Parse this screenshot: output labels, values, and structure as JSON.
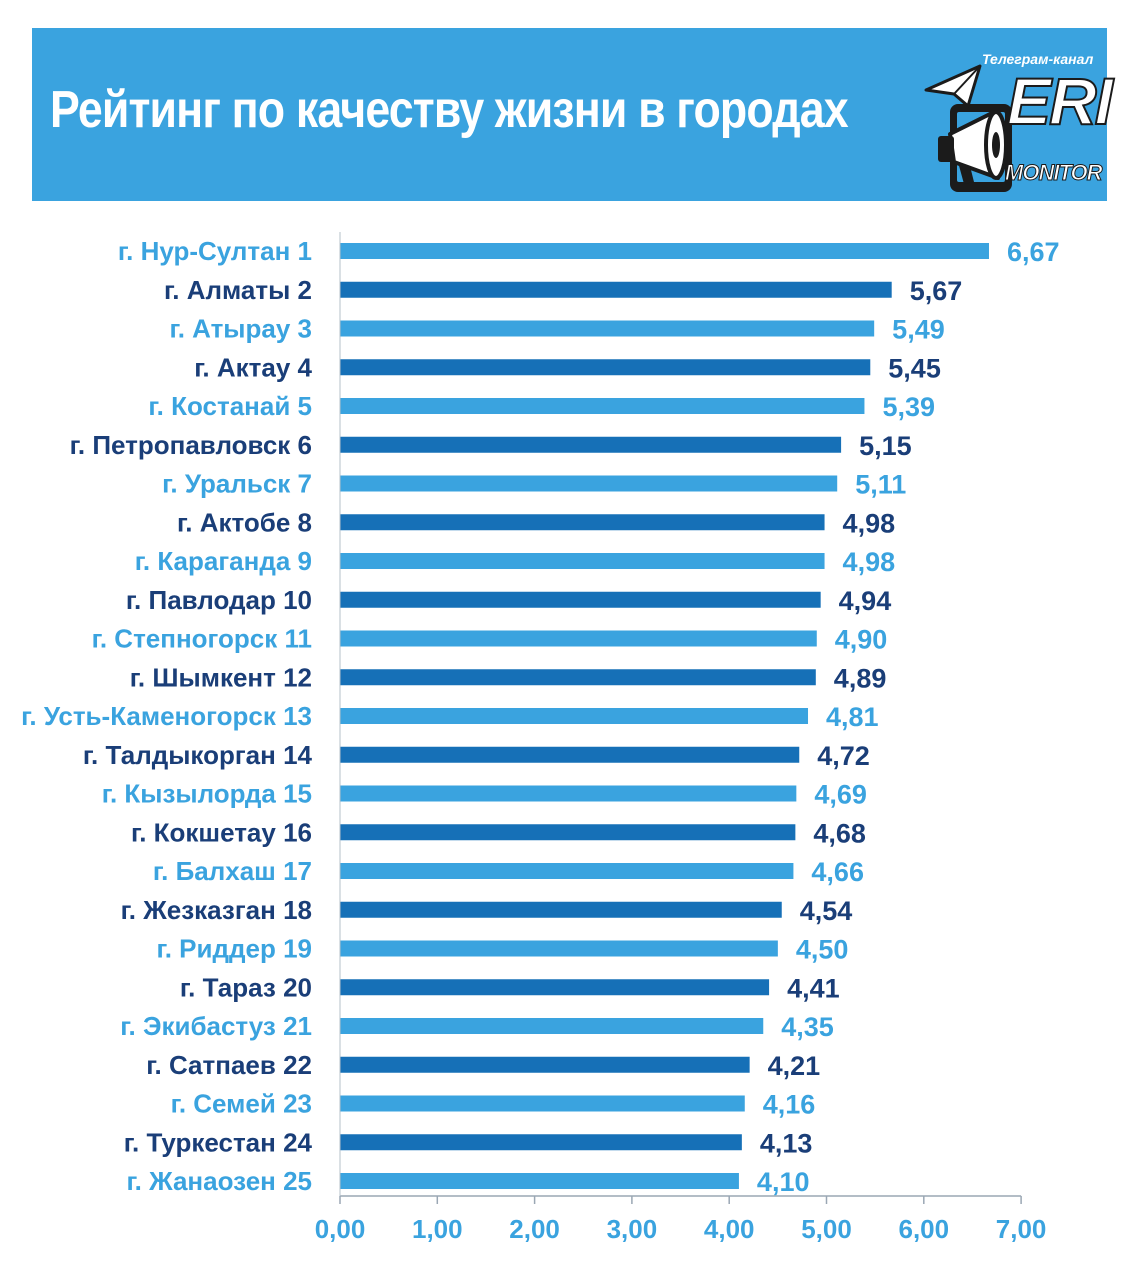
{
  "header": {
    "title": "Рейтинг по качеству жизни в городах",
    "logo_caption": "Телеграм-канал",
    "logo_word": "ERI",
    "logo_sub": "MONITOR"
  },
  "colors": {
    "banner": "#3aa3df",
    "light": "#3aa3df",
    "dark": "#1670b7",
    "label_dark": "#1a3e78"
  },
  "chart_data": {
    "type": "bar",
    "orientation": "horizontal",
    "categories": [
      "г. Нур-Султан 1",
      "г. Алматы 2",
      "г. Атырау 3",
      "г. Актау 4",
      "г. Костанай 5",
      "г. Петропавловск 6",
      "г. Уральск 7",
      "г. Актобе 8",
      "г. Караганда 9",
      "г. Павлодар 10",
      "г. Степногорск 11",
      "г. Шымкент 12",
      "г. Усть-Каменогорск 13",
      "г. Талдыкорган 14",
      "г. Кызылорда 15",
      "г. Кокшетау 16",
      "г. Балхаш 17",
      "г. Жезказган 18",
      "г. Риддер 19",
      "г. Тараз 20",
      "г. Экибастуз 21",
      "г. Сатпаев 22",
      "г. Семей 23",
      "г. Туркестан 24",
      "г. Жанаозен 25"
    ],
    "values": [
      6.67,
      5.67,
      5.49,
      5.45,
      5.39,
      5.15,
      5.11,
      4.98,
      4.98,
      4.94,
      4.9,
      4.89,
      4.81,
      4.72,
      4.69,
      4.68,
      4.66,
      4.54,
      4.5,
      4.41,
      4.35,
      4.21,
      4.16,
      4.13,
      4.1
    ],
    "value_labels": [
      "6,67",
      "5,67",
      "5,49",
      "5,45",
      "5,39",
      "5,15",
      "5,11",
      "4,98",
      "4,98",
      "4,94",
      "4,90",
      "4,89",
      "4,81",
      "4,72",
      "4,69",
      "4,68",
      "4,66",
      "4,54",
      "4,50",
      "4,41",
      "4,35",
      "4,21",
      "4,16",
      "4,13",
      "4,10"
    ],
    "xlim": [
      0,
      7
    ],
    "xticks": [
      "0,00",
      "1,00",
      "2,00",
      "3,00",
      "4,00",
      "5,00",
      "6,00",
      "7,00"
    ],
    "title": "Рейтинг по качеству жизни в городах",
    "xlabel": "",
    "ylabel": "",
    "grid": false,
    "legend": "none"
  }
}
